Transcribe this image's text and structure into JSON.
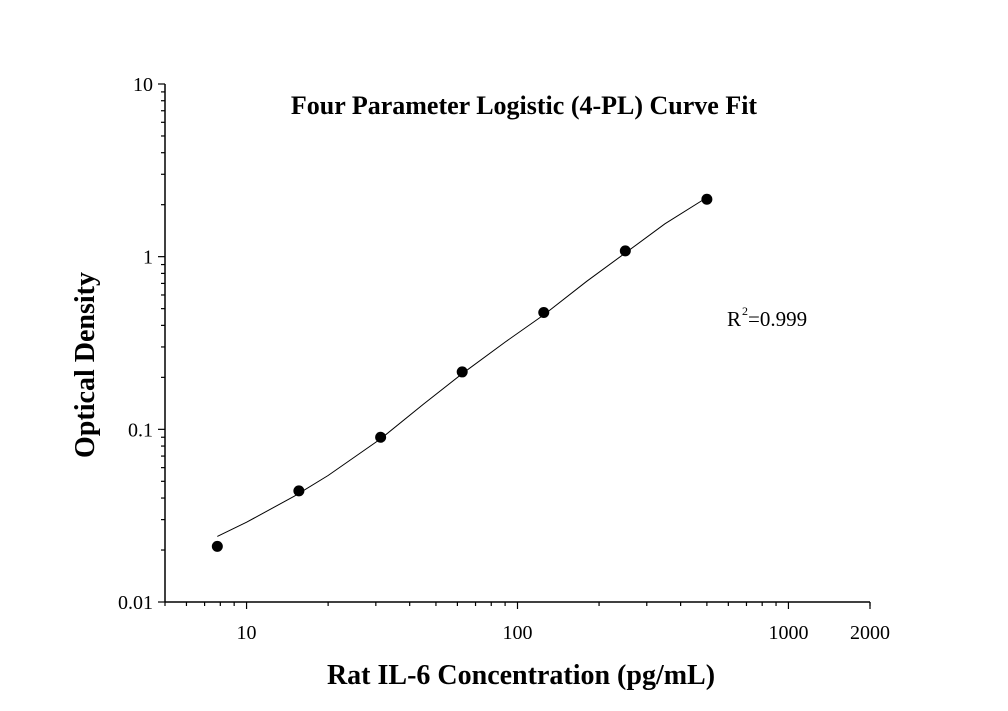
{
  "chart_data": {
    "type": "scatter",
    "title": "Four Parameter Logistic (4-PL) Curve Fit",
    "xlabel": "Rat IL-6 Concentration (pg/mL)",
    "ylabel": "Optical Density",
    "x_scale": "log",
    "y_scale": "log",
    "xlim": [
      5,
      2000
    ],
    "ylim": [
      0.01,
      10
    ],
    "x_ticks": [
      10,
      100,
      1000,
      2000
    ],
    "x_tick_labels": [
      "10",
      "100",
      "1000",
      "2000"
    ],
    "y_ticks": [
      0.01,
      0.1,
      1,
      10
    ],
    "y_tick_labels": [
      "0.01",
      "0.1",
      "1",
      "10"
    ],
    "grid": false,
    "series": [
      {
        "type": "scatter",
        "x": [
          7.8,
          15.6,
          31.25,
          62.5,
          125,
          250,
          500
        ],
        "y": [
          0.021,
          0.044,
          0.09,
          0.215,
          0.475,
          1.08,
          2.15
        ]
      },
      {
        "type": "line",
        "x": [
          7.8,
          10,
          15,
          20,
          31.25,
          45,
          62.5,
          90,
          125,
          180,
          250,
          350,
          500
        ],
        "y": [
          0.024,
          0.029,
          0.041,
          0.054,
          0.088,
          0.14,
          0.21,
          0.32,
          0.46,
          0.72,
          1.05,
          1.55,
          2.2
        ]
      }
    ],
    "annotations": {
      "r2_base": "R",
      "r2_sup": "2",
      "r2_value": "=0.999"
    }
  }
}
